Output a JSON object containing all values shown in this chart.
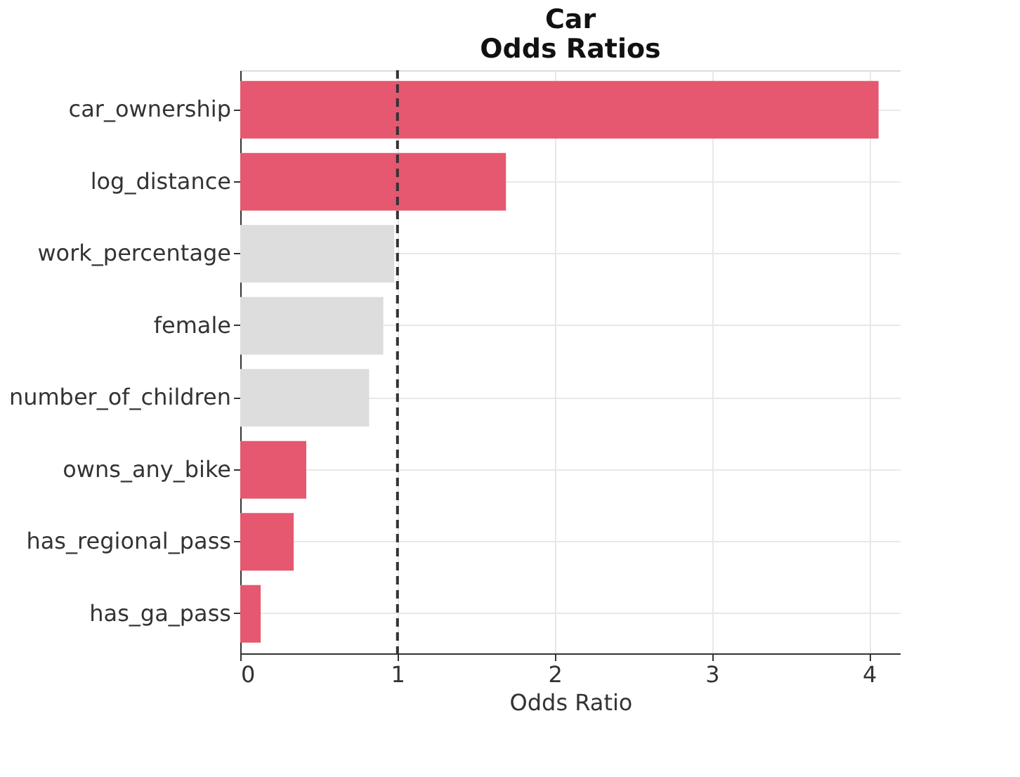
{
  "chart_data": {
    "type": "bar",
    "orientation": "horizontal",
    "title": "Car\nOdds Ratios",
    "xlabel": "Odds Ratio",
    "categories": [
      "car_ownership",
      "log_distance",
      "work_percentage",
      "female",
      "number_of_children",
      "owns_any_bike",
      "has_regional_pass",
      "has_ga_pass"
    ],
    "values": [
      4.06,
      1.69,
      0.98,
      0.91,
      0.82,
      0.42,
      0.34,
      0.13
    ],
    "colors": [
      "#e5586f",
      "#e5586f",
      "#dddddd",
      "#dddddd",
      "#dddddd",
      "#e5586f",
      "#e5586f",
      "#e5586f"
    ],
    "xlim": [
      0,
      4.2
    ],
    "xticks": [
      0,
      1,
      2,
      3,
      4
    ],
    "grid": true,
    "ref_lines": [
      {
        "axis": "x",
        "value": 1,
        "color": "#333333",
        "line_style": "dashed"
      }
    ]
  }
}
